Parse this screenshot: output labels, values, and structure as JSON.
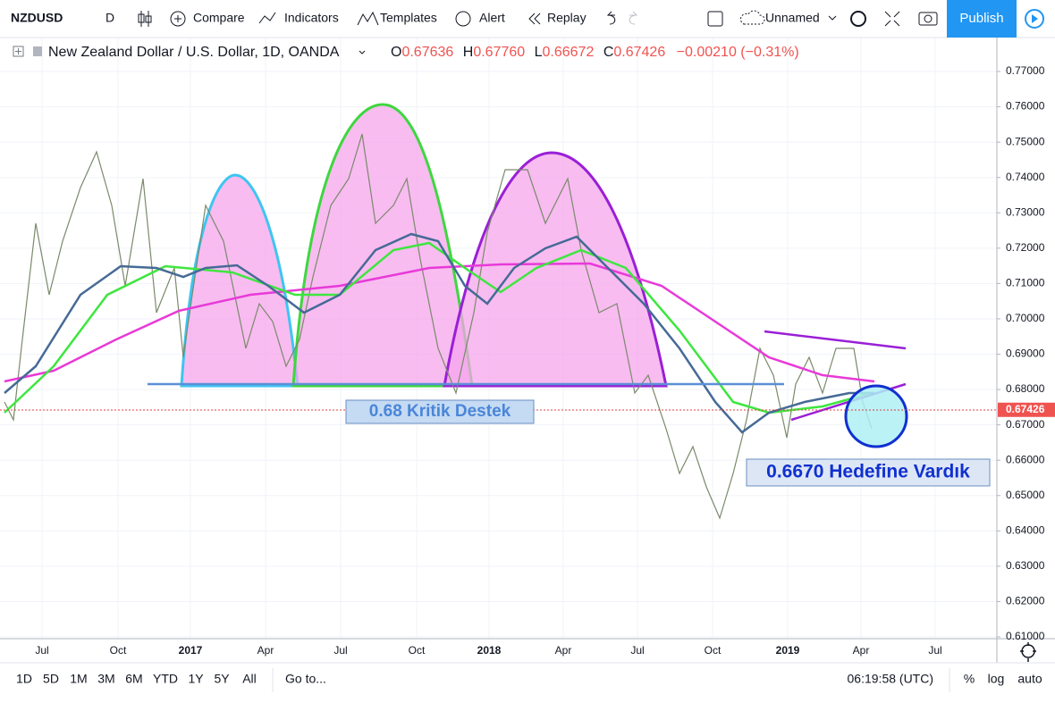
{
  "toolbar": {
    "symbol": "NZDUSD",
    "interval": "D",
    "buttons": [
      "Compare",
      "Indicators",
      "Templates",
      "Alert",
      "Replay"
    ],
    "layout_name": "Unnamed",
    "publish": "Publish"
  },
  "legend": {
    "title": "New Zealand Dollar / U.S. Dollar, 1D, OANDA",
    "open_label": "O",
    "open": "0.67636",
    "high_label": "H",
    "high": "0.67760",
    "low_label": "L",
    "low": "0.66672",
    "close_label": "C",
    "close": "0.67426",
    "change": "−0.00210 (−0.31%)"
  },
  "price_axis": {
    "ticks": [
      {
        "value": 0.77,
        "label": "0.77000"
      },
      {
        "value": 0.76,
        "label": "0.76000"
      },
      {
        "value": 0.75,
        "label": "0.75000"
      },
      {
        "value": 0.74,
        "label": "0.74000"
      },
      {
        "value": 0.73,
        "label": "0.73000"
      },
      {
        "value": 0.72,
        "label": "0.72000"
      },
      {
        "value": 0.71,
        "label": "0.71000"
      },
      {
        "value": 0.7,
        "label": "0.70000"
      },
      {
        "value": 0.69,
        "label": "0.69000"
      },
      {
        "value": 0.68,
        "label": "0.68000"
      },
      {
        "value": 0.67,
        "label": "0.67000"
      },
      {
        "value": 0.66,
        "label": "0.66000"
      },
      {
        "value": 0.65,
        "label": "0.65000"
      },
      {
        "value": 0.64,
        "label": "0.64000"
      },
      {
        "value": 0.63,
        "label": "0.63000"
      },
      {
        "value": 0.62,
        "label": "0.62000"
      },
      {
        "value": 0.61,
        "label": "0.61000"
      }
    ],
    "last_price": {
      "value": 0.67426,
      "label": "0.67426"
    }
  },
  "time_axis": [
    "Jul",
    "Oct",
    "2017",
    "Apr",
    "Jul",
    "Oct",
    "2018",
    "Apr",
    "Jul",
    "Oct",
    "2019",
    "Apr",
    "Jul"
  ],
  "annotations": {
    "support": "0.68 Kritik Destek",
    "target": "0.6670 Hedefine Vardık"
  },
  "bottom_bar": {
    "ranges": [
      "1D",
      "5D",
      "1M",
      "3M",
      "6M",
      "YTD",
      "1Y",
      "5Y",
      "All"
    ],
    "goto": "Go to...",
    "clock": "06:19:58 (UTC)",
    "percent": "%",
    "log": "log",
    "auto": "auto"
  }
}
